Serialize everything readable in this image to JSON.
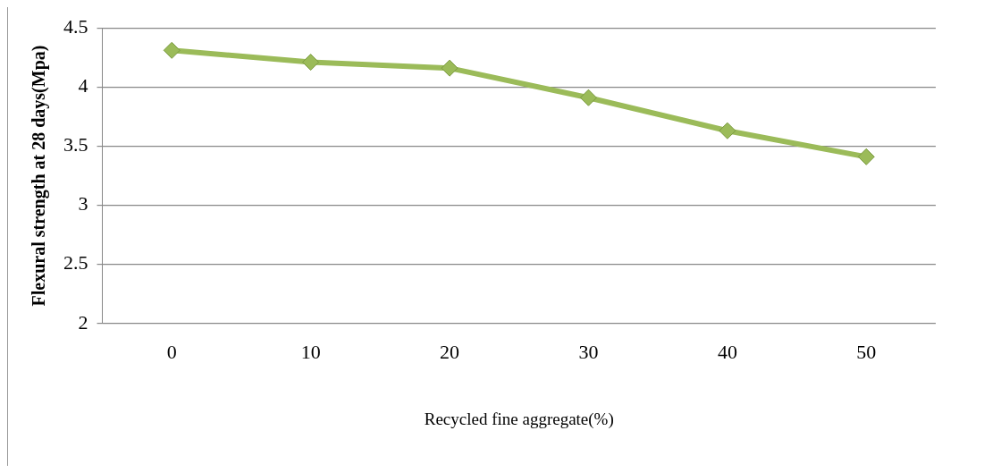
{
  "chart_data": {
    "type": "line",
    "xlabel": "Recycled fine aggregate(%)",
    "ylabel": "Flexural strength at 28 days(Mpa)",
    "categories": [
      "0",
      "10",
      "20",
      "30",
      "40",
      "50"
    ],
    "series": [
      {
        "color": "#9bbb59",
        "values": [
          4.31,
          4.21,
          4.16,
          3.91,
          3.63,
          3.41
        ]
      }
    ],
    "ylim": [
      2,
      4.5
    ],
    "yticks": [
      2,
      2.5,
      3,
      3.5,
      4,
      4.5
    ],
    "grid": "y",
    "legend": false,
    "marker": "diamond",
    "line_style": "solid"
  }
}
